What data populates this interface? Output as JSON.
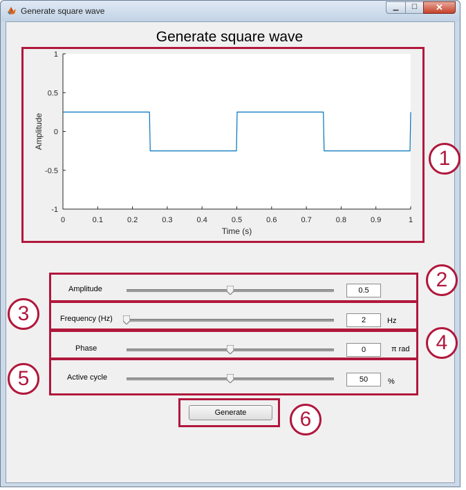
{
  "window": {
    "title": "Generate square wave",
    "minimize_glyph": "▁",
    "maximize_glyph": "☐",
    "close_glyph": "✕",
    "app_icon": "matlab-icon"
  },
  "figure": {
    "title": "Generate square wave"
  },
  "chart_data": {
    "type": "line",
    "title": "",
    "xlabel": "Time (s)",
    "ylabel": "Amplitude",
    "xlim": [
      0,
      1
    ],
    "ylim": [
      -1,
      1
    ],
    "x_ticks": [
      0,
      0.1,
      0.2,
      0.3,
      0.4,
      0.5,
      0.6,
      0.7,
      0.8,
      0.9,
      1
    ],
    "x_tick_labels": [
      "0",
      "0.1",
      "0.2",
      "0.3",
      "0.4",
      "0.5",
      "0.6",
      "0.7",
      "0.8",
      "0.9",
      "1"
    ],
    "y_ticks": [
      1,
      0.5,
      0,
      -0.5,
      -1
    ],
    "y_tick_labels": [
      "1",
      "0.5",
      "0",
      "-0.5",
      "-1"
    ],
    "grid": false,
    "series": [
      {
        "color": "#0072bd",
        "x": [
          0,
          0.249,
          0.251,
          0.499,
          0.501,
          0.749,
          0.751,
          0.998,
          1
        ],
        "y": [
          0.25,
          0.25,
          -0.25,
          -0.25,
          0.25,
          0.25,
          -0.25,
          -0.25,
          0.25
        ]
      }
    ]
  },
  "controls": {
    "amplitude": {
      "label": "Amplitude",
      "value": "0.5",
      "unit": "",
      "slider_fraction": 0.5
    },
    "frequency": {
      "label": "Frequency (Hz)",
      "value": "2",
      "unit": "Hz",
      "slider_fraction": 0.0
    },
    "phase": {
      "label": "Phase",
      "value": "0",
      "unit": "π rad",
      "slider_fraction": 0.5
    },
    "active_cycle": {
      "label": "Active cycle",
      "value": "50",
      "unit": "%",
      "slider_fraction": 0.5
    }
  },
  "generate_button": {
    "label": "Generate"
  },
  "callouts": [
    "1",
    "2",
    "3",
    "4",
    "5",
    "6"
  ],
  "colors": {
    "callout": "#b1173c",
    "line": "#0072bd"
  }
}
